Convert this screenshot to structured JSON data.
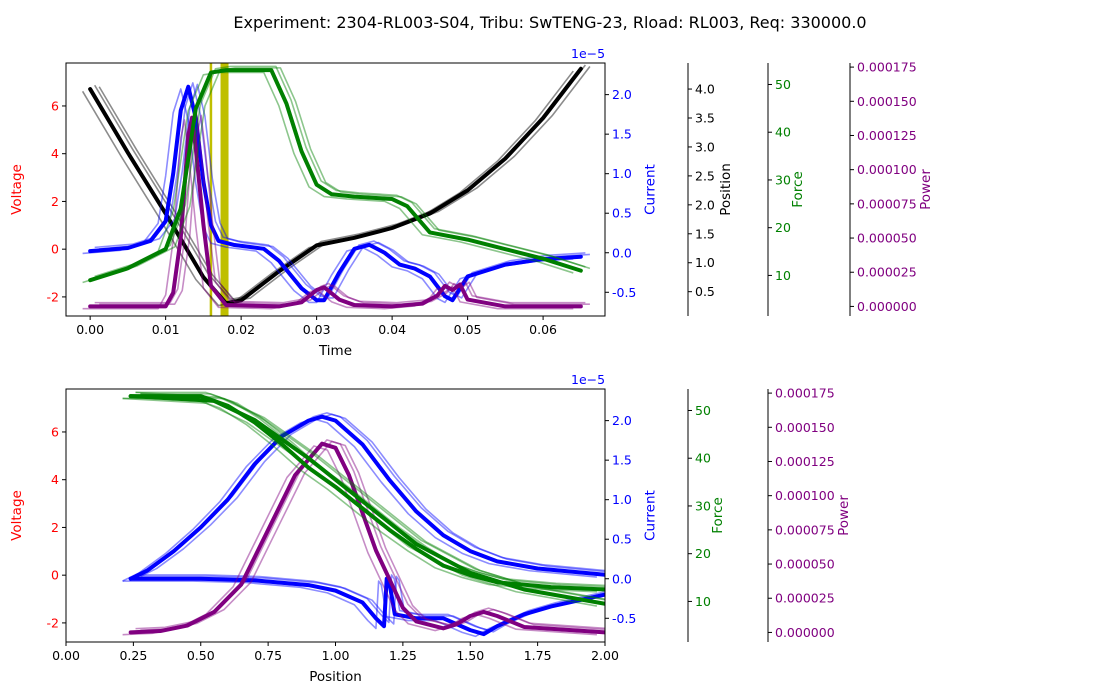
{
  "figure": {
    "title": "Experiment: 2304-RL003-S04, Tribu: SwTENG-23, Rload: RL003, Req: 330000.0"
  },
  "colors": {
    "voltage": "#ff0000",
    "current": "#0000ff",
    "position": "#000000",
    "force": "#008000",
    "power": "#800080",
    "marker": "#bfbf00"
  },
  "chart_data": [
    {
      "type": "line",
      "panel": "top",
      "xlabel": "Time",
      "xlim": [
        -0.0032,
        0.0682
      ],
      "x_ticks": [
        "0.00",
        "0.01",
        "0.02",
        "0.03",
        "0.04",
        "0.05",
        "0.06"
      ],
      "axes": [
        {
          "name": "Voltage",
          "label": "Voltage",
          "color": "#ff0000",
          "ylim": [
            -2.8,
            7.8
          ],
          "ticks": [
            "-2",
            "0",
            "2",
            "4",
            "6"
          ]
        },
        {
          "name": "Current",
          "label": "Current",
          "color": "#0000ff",
          "ylim": [
            -0.8,
            2.4
          ],
          "ticks": [
            "-0.5",
            "0.0",
            "0.5",
            "1.0",
            "1.5",
            "2.0"
          ],
          "offset_text": "1e−5"
        },
        {
          "name": "Position",
          "label": "Position",
          "color": "#000000",
          "ylim": [
            0.08,
            4.45
          ],
          "ticks": [
            "0.5",
            "1.0",
            "1.5",
            "2.0",
            "2.5",
            "3.0",
            "3.5",
            "4.0"
          ]
        },
        {
          "name": "Force",
          "label": "Force",
          "color": "#008000",
          "ylim": [
            1.5,
            54.5
          ],
          "ticks": [
            "10",
            "20",
            "30",
            "40",
            "50"
          ]
        },
        {
          "name": "Power",
          "label": "Power",
          "color": "#800080",
          "ylim": [
            -7e-06,
            0.000178
          ],
          "ticks": [
            "0.000000",
            "0.000025",
            "0.000050",
            "0.000075",
            "0.000100",
            "0.000125",
            "0.000150",
            "0.000175"
          ]
        }
      ],
      "markers_x": [
        0.016,
        0.0178
      ],
      "series": [
        {
          "axis": "Position",
          "color": "#000000",
          "x": [
            0.0,
            0.005,
            0.01,
            0.015,
            0.018,
            0.02,
            0.025,
            0.03,
            0.035,
            0.04,
            0.045,
            0.05,
            0.055,
            0.06,
            0.065
          ],
          "y": [
            4.0,
            2.9,
            1.85,
            0.75,
            0.3,
            0.35,
            0.85,
            1.3,
            1.43,
            1.6,
            1.85,
            2.25,
            2.8,
            3.5,
            4.35
          ]
        },
        {
          "axis": "Current",
          "color": "#0000ff",
          "x": [
            0.0,
            0.005,
            0.008,
            0.01,
            0.011,
            0.012,
            0.013,
            0.014,
            0.015,
            0.016,
            0.017,
            0.019,
            0.023,
            0.025,
            0.028,
            0.03,
            0.031,
            0.033,
            0.035,
            0.037,
            0.039,
            0.041,
            0.043,
            0.045,
            0.047,
            0.048,
            0.05,
            0.055,
            0.06,
            0.065
          ],
          "y": [
            0.02,
            0.06,
            0.15,
            0.4,
            1.0,
            1.8,
            2.1,
            1.7,
            0.9,
            0.35,
            0.15,
            0.1,
            0.05,
            -0.1,
            -0.45,
            -0.6,
            -0.6,
            -0.25,
            0.05,
            0.1,
            0.0,
            -0.15,
            -0.2,
            -0.3,
            -0.55,
            -0.6,
            -0.3,
            -0.15,
            -0.08,
            -0.05
          ]
        },
        {
          "axis": "Power",
          "color": "#800080",
          "x": [
            0.0,
            0.008,
            0.01,
            0.011,
            0.012,
            0.013,
            0.0135,
            0.014,
            0.015,
            0.016,
            0.018,
            0.025,
            0.028,
            0.03,
            0.031,
            0.033,
            0.035,
            0.04,
            0.044,
            0.046,
            0.047,
            0.048,
            0.049,
            0.05,
            0.055,
            0.065
          ],
          "y": [
            0.0,
            0.0,
            0.0,
            1e-05,
            5e-05,
            0.000125,
            0.000138,
            0.000115,
            6e-05,
            1.5e-05,
            1e-06,
            0.0,
            3e-06,
            1.2e-05,
            1.4e-05,
            5e-06,
            1e-06,
            0.0,
            2e-06,
            8e-06,
            1.5e-05,
            1.2e-05,
            1.6e-05,
            5e-06,
            0.0,
            0.0
          ]
        },
        {
          "axis": "Force",
          "color": "#008000",
          "x": [
            0.0,
            0.005,
            0.01,
            0.012,
            0.014,
            0.016,
            0.018,
            0.02,
            0.024,
            0.026,
            0.028,
            0.03,
            0.032,
            0.035,
            0.04,
            0.042,
            0.045,
            0.05,
            0.055,
            0.06,
            0.065
          ],
          "y": [
            9.0,
            11.5,
            15.5,
            24.0,
            45.0,
            52.5,
            53.0,
            53.0,
            53.0,
            46.0,
            36.0,
            29.0,
            27.0,
            26.5,
            26.0,
            24.5,
            19.0,
            17.5,
            15.5,
            13.5,
            11.0
          ]
        }
      ]
    },
    {
      "type": "line",
      "panel": "bottom",
      "xlabel": "Position",
      "xlim": [
        0.0,
        2.0
      ],
      "x_ticks": [
        "0.00",
        "0.25",
        "0.50",
        "0.75",
        "1.00",
        "1.25",
        "1.50",
        "1.75",
        "2.00"
      ],
      "axes": [
        {
          "name": "Voltage",
          "label": "Voltage",
          "color": "#ff0000",
          "ylim": [
            -2.8,
            7.8
          ],
          "ticks": [
            "-2",
            "0",
            "2",
            "4",
            "6"
          ]
        },
        {
          "name": "Current",
          "label": "Current",
          "color": "#0000ff",
          "ylim": [
            -0.8,
            2.4
          ],
          "ticks": [
            "-0.5",
            "0.0",
            "0.5",
            "1.0",
            "1.5",
            "2.0"
          ],
          "offset_text": "1e−5"
        },
        {
          "name": "Force",
          "label": "Force",
          "color": "#008000",
          "ylim": [
            1.5,
            54.5
          ],
          "ticks": [
            "10",
            "20",
            "30",
            "40",
            "50"
          ]
        },
        {
          "name": "Power",
          "label": "Power",
          "color": "#800080",
          "ylim": [
            -7e-06,
            0.000178
          ],
          "ticks": [
            "0.000000",
            "0.000025",
            "0.000050",
            "0.000075",
            "0.000100",
            "0.000125",
            "0.000150",
            "0.000175"
          ]
        }
      ],
      "series": [
        {
          "axis": "Current",
          "color": "#0000ff",
          "x": [
            0.24,
            0.3,
            0.4,
            0.5,
            0.6,
            0.7,
            0.8,
            0.9,
            0.95,
            1.0,
            1.1,
            1.2,
            1.3,
            1.4,
            1.5,
            1.6,
            1.75,
            2.0
          ],
          "y": [
            0.0,
            0.1,
            0.35,
            0.65,
            1.0,
            1.45,
            1.8,
            2.0,
            2.05,
            2.0,
            1.7,
            1.25,
            0.85,
            0.55,
            0.35,
            0.22,
            0.13,
            0.05
          ]
        },
        {
          "axis": "Current",
          "color": "#0000ff",
          "x": [
            0.24,
            0.3,
            0.5,
            0.7,
            0.9,
            1.0,
            1.1,
            1.15,
            1.18,
            1.19,
            1.2,
            1.22,
            1.3,
            1.4,
            1.5,
            1.55,
            1.6,
            1.7,
            1.8,
            2.0
          ],
          "y": [
            0.0,
            0.0,
            0.0,
            -0.02,
            -0.08,
            -0.15,
            -0.3,
            -0.5,
            -0.6,
            0.0,
            -0.05,
            -0.45,
            -0.5,
            -0.5,
            -0.65,
            -0.7,
            -0.6,
            -0.45,
            -0.35,
            -0.2
          ]
        },
        {
          "axis": "Power",
          "color": "#800080",
          "x": [
            0.24,
            0.35,
            0.45,
            0.55,
            0.65,
            0.75,
            0.85,
            0.95,
            1.0,
            1.05,
            1.15,
            1.25,
            1.3,
            1.4,
            1.45,
            1.5,
            1.55,
            1.6,
            1.7,
            2.0
          ],
          "y": [
            0.0,
            1e-06,
            5e-06,
            1.5e-05,
            3.5e-05,
            7.5e-05,
            0.000115,
            0.000138,
            0.000135,
            0.000115,
            6e-05,
            1.8e-05,
            8e-06,
            3e-06,
            6e-06,
            1.2e-05,
            1.5e-05,
            1.2e-05,
            4e-06,
            0.0
          ]
        },
        {
          "axis": "Force",
          "color": "#008000",
          "x": [
            0.24,
            0.5,
            0.6,
            0.7,
            0.8,
            0.9,
            1.0,
            1.1,
            1.2,
            1.3,
            1.4,
            1.5,
            1.6,
            1.8,
            2.0
          ],
          "y": [
            53.0,
            53.0,
            51.0,
            47.5,
            43.0,
            38.0,
            34.0,
            29.5,
            25.0,
            21.0,
            17.5,
            15.5,
            14.0,
            13.0,
            12.5
          ]
        },
        {
          "axis": "Force",
          "color": "#008000",
          "x": [
            0.24,
            0.55,
            0.7,
            0.9,
            1.1,
            1.3,
            1.5,
            1.7,
            2.0
          ],
          "y": [
            53.0,
            52.0,
            48.0,
            40.0,
            31.0,
            22.0,
            16.0,
            12.5,
            9.5
          ]
        }
      ]
    }
  ]
}
